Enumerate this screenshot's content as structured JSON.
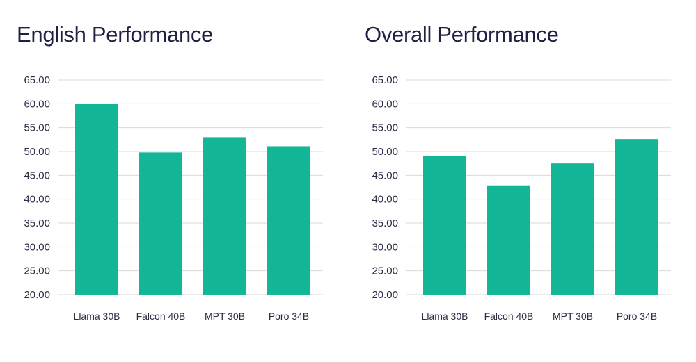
{
  "colors": {
    "bar": "#14b698",
    "grid": "#d9d9de",
    "text": "#1f2140"
  },
  "chart_data": [
    {
      "type": "bar",
      "title": "English Performance",
      "categories": [
        "Llama 30B",
        "Falcon 40B",
        "MPT 30B",
        "Poro 34B"
      ],
      "values": [
        60.0,
        49.8,
        53.0,
        51.1
      ],
      "xlabel": "",
      "ylabel": "",
      "ylim": [
        20,
        65
      ],
      "yticks": [
        "20.00",
        "25.00",
        "30.00",
        "35.00",
        "40.00",
        "45.00",
        "50.00",
        "55.00",
        "60.00",
        "65.00"
      ],
      "grid": true,
      "legend": "none"
    },
    {
      "type": "bar",
      "title": "Overall Performance",
      "categories": [
        "Llama 30B",
        "Falcon 40B",
        "MPT 30B",
        "Poro 34B"
      ],
      "values": [
        49.0,
        42.9,
        47.5,
        52.6
      ],
      "xlabel": "",
      "ylabel": "",
      "ylim": [
        20,
        65
      ],
      "yticks": [
        "20.00",
        "25.00",
        "30.00",
        "35.00",
        "40.00",
        "45.00",
        "50.00",
        "55.00",
        "60.00",
        "65.00"
      ],
      "grid": true,
      "legend": "none"
    }
  ]
}
